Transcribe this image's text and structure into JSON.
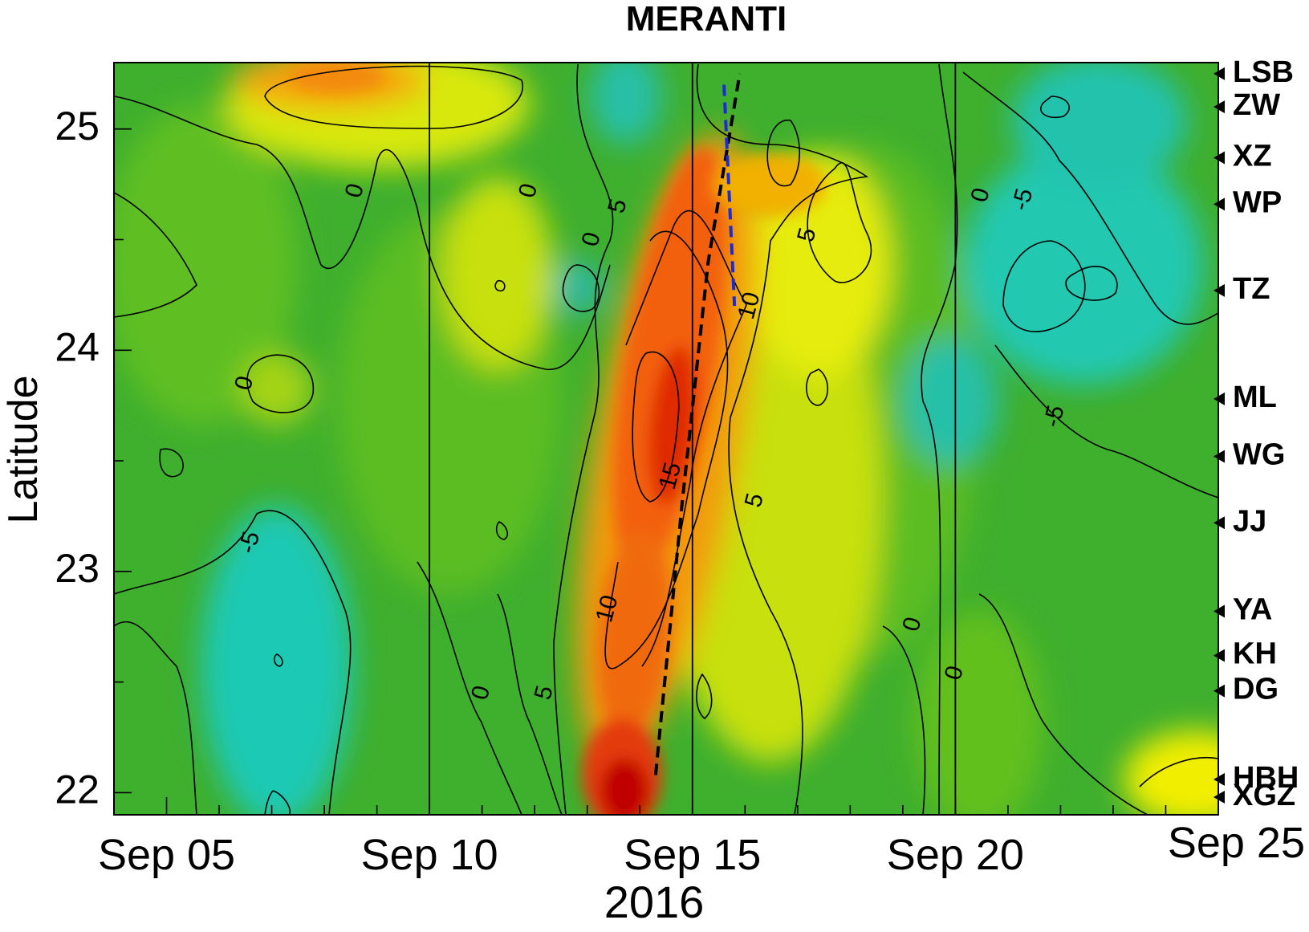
{
  "chart_data": {
    "type": "heatmap",
    "title": "MERANTI",
    "xlabel": "2016",
    "ylabel": "Latitude",
    "x_ticks": [
      "Sep 05",
      "Sep 10",
      "Sep 15",
      "Sep 20",
      "Sep 25"
    ],
    "y_ticks": [
      "22",
      "23",
      "24",
      "25"
    ],
    "xlim": [
      "2016-09-04",
      "2016-09-25"
    ],
    "ylim": [
      21.9,
      25.3
    ],
    "vertical_lines_at": [
      "2016-09-10",
      "2016-09-15",
      "2016-09-20"
    ],
    "colormap": [
      "#1fd4c4",
      "#1aa84a",
      "#58bb22",
      "#a6d414",
      "#ffff00",
      "#ffa500",
      "#ff4800",
      "#c80000"
    ],
    "stations": [
      {
        "name": "LSB",
        "lat": 25.25
      },
      {
        "name": "ZW",
        "lat": 25.1
      },
      {
        "name": "XZ",
        "lat": 24.87
      },
      {
        "name": "WP",
        "lat": 24.66
      },
      {
        "name": "TZ",
        "lat": 24.27
      },
      {
        "name": "ML",
        "lat": 23.78
      },
      {
        "name": "WG",
        "lat": 23.52
      },
      {
        "name": "JJ",
        "lat": 23.22
      },
      {
        "name": "YA",
        "lat": 22.82
      },
      {
        "name": "KH",
        "lat": 22.62
      },
      {
        "name": "DG",
        "lat": 22.46
      },
      {
        "name": "HBH",
        "lat": 22.06
      },
      {
        "name": "XGZ",
        "lat": 21.98
      }
    ],
    "contour_labels": [
      {
        "text": "0",
        "x": "2016-09-08.6",
        "y": 24.72
      },
      {
        "text": "0",
        "x": "2016-09-11.9",
        "y": 24.72
      },
      {
        "text": "0",
        "x": "2016-09-06.5",
        "y": 23.85
      },
      {
        "text": "-5",
        "x": "2016-09-06.6",
        "y": 23.13
      },
      {
        "text": "0",
        "x": "2016-09-13.1",
        "y": 24.5
      },
      {
        "text": "5",
        "x": "2016-09-13.6",
        "y": 24.65
      },
      {
        "text": "5",
        "x": "2016-09-17.2",
        "y": 24.52
      },
      {
        "text": "10",
        "x": "2016-09-16.1",
        "y": 24.2
      },
      {
        "text": "15",
        "x": "2016-09-14.6",
        "y": 23.43
      },
      {
        "text": "5",
        "x": "2016-09-16.2",
        "y": 23.32
      },
      {
        "text": "10",
        "x": "2016-09-13.4",
        "y": 22.83
      },
      {
        "text": "0",
        "x": "2016-09-11.0",
        "y": 22.45
      },
      {
        "text": "5",
        "x": "2016-09-12.2",
        "y": 22.45
      },
      {
        "text": "0",
        "x": "2016-09-19.2",
        "y": 22.76
      },
      {
        "text": "0",
        "x": "2016-09-20.0",
        "y": 22.54
      },
      {
        "text": "0",
        "x": "2016-09-20.5",
        "y": 24.7
      },
      {
        "text": "-5",
        "x": "2016-09-21.3",
        "y": 24.68
      },
      {
        "text": "-5",
        "x": "2016-09-21.9",
        "y": 23.7
      }
    ],
    "track_black": [
      {
        "x": "2016-09-14.3",
        "y": 22.08
      },
      {
        "x": "2016-09-14.8",
        "y": 23.3
      },
      {
        "x": "2016-09-15.3",
        "y": 24.4
      },
      {
        "x": "2016-09-15.9",
        "y": 25.25
      }
    ],
    "track_blue": [
      {
        "x": "2016-09-15.6",
        "y": 25.2
      },
      {
        "x": "2016-09-15.8",
        "y": 24.2
      }
    ]
  }
}
